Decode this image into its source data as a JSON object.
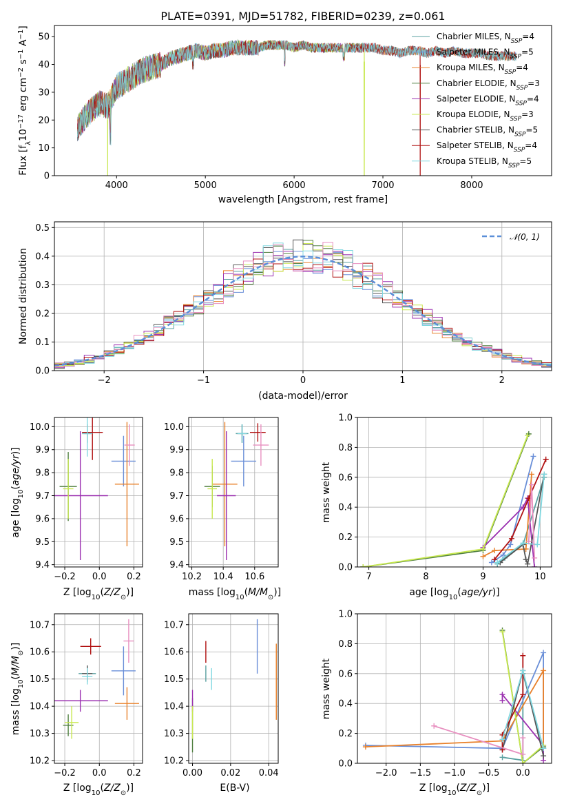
{
  "chart_data": [
    {
      "id": "spectrum",
      "type": "line",
      "title": "PLATE=0391, MJD=51782, FIBERID=0239, z=0.061",
      "xlabel": "wavelength [Angstrom, rest frame]",
      "ylabel": "Flux [f_λ 10^-17 erg cm^-2 s^-1 A^-1]",
      "xlim": [
        3300,
        8900
      ],
      "ylim": [
        0,
        54
      ],
      "xticks": [
        4000,
        5000,
        6000,
        7000,
        8000
      ],
      "yticks": [
        0,
        10,
        20,
        30,
        40,
        50
      ],
      "envelope_x": [
        3560,
        3620,
        3700,
        3800,
        3900,
        4000,
        4100,
        4200,
        4300,
        4400,
        4500,
        4600,
        4700,
        4800,
        4900,
        5000,
        5100,
        5200,
        5300,
        5400,
        5500,
        5600,
        5700,
        5800,
        5900,
        6000,
        6100,
        6200,
        6300,
        6400,
        6500,
        6600,
        6700,
        6800,
        6900,
        7000,
        7100,
        7200,
        7300,
        7400,
        7500,
        7600,
        7700,
        7800,
        7900,
        8000,
        8100,
        8200,
        8300,
        8400,
        8500
      ],
      "envelope_y": [
        17,
        20,
        23,
        26,
        25,
        32,
        34,
        36,
        38,
        39,
        40,
        42,
        43,
        44,
        45,
        44,
        45,
        45,
        46,
        46,
        46,
        46,
        47,
        47,
        47,
        46,
        47,
        46,
        46,
        46,
        46,
        46,
        46,
        46,
        46,
        45,
        45,
        44,
        45,
        45,
        44,
        45,
        44,
        45,
        44,
        44,
        44,
        43,
        43,
        43,
        43
      ],
      "spike_down": [
        {
          "x": 3900,
          "series": "Kroupa ELODIE"
        },
        {
          "x": 6790,
          "series": "Kroupa ELODIE"
        },
        {
          "x": 7420,
          "series": "Salpeter STELIB"
        }
      ],
      "legend": [
        {
          "name": "Chabrier MILES, N",
          "sub": "SSP",
          "suffix": "=4"
        },
        {
          "name": "Salpeter MILES, N",
          "sub": "SSP",
          "suffix": "=5"
        },
        {
          "name": "Kroupa MILES, N",
          "sub": "SSP",
          "suffix": "=4"
        },
        {
          "name": "Chabrier ELODIE, N",
          "sub": "SSP",
          "suffix": "=3"
        },
        {
          "name": "Salpeter ELODIE, N",
          "sub": "SSP",
          "suffix": "=4"
        },
        {
          "name": "Kroupa ELODIE, N",
          "sub": "SSP",
          "suffix": "=3"
        },
        {
          "name": "Chabrier STELIB, N",
          "sub": "SSP",
          "suffix": "=5"
        },
        {
          "name": "Salpeter STELIB, N",
          "sub": "SSP",
          "suffix": "=4"
        },
        {
          "name": "Kroupa STELIB, N",
          "sub": "SSP",
          "suffix": "=5"
        }
      ],
      "legend_placement": "top-right"
    },
    {
      "id": "residuals",
      "type": "histogram",
      "xlabel": "(data-model)/error",
      "ylabel": "Normed distribution",
      "xlim": [
        -2.5,
        2.5
      ],
      "ylim": [
        0,
        0.52
      ],
      "xticks": [
        -2,
        -1,
        0,
        1,
        2
      ],
      "yticks": [
        0.0,
        0.1,
        0.2,
        0.3,
        0.4,
        0.5
      ],
      "grid": true,
      "bin_width": 0.1,
      "reference_curve": {
        "label": "𝒩(0, 1)",
        "mean": 0,
        "sigma": 1
      },
      "legend_placement": "top-right"
    },
    {
      "id": "age_vs_Z",
      "type": "errorbar",
      "xlabel": "Z [log₁₀(Z/Z☉)]",
      "ylabel": "age  [log₁₀(age/yr)]",
      "xlim": [
        -0.26,
        0.25
      ],
      "ylim": [
        9.39,
        10.04
      ],
      "xticks": [
        -0.2,
        0.0,
        0.2
      ],
      "yticks": [
        9.4,
        9.5,
        9.6,
        9.7,
        9.8,
        9.9,
        10.0
      ],
      "points": [
        {
          "series": "Chabrier MILES",
          "x": -0.07,
          "xerr": 0.02,
          "y": 9.97,
          "yerr": 0.04
        },
        {
          "series": "Salpeter MILES",
          "x": 0.14,
          "xerr": 0.07,
          "y": 9.85,
          "yerr": 0.11
        },
        {
          "series": "Kroupa MILES",
          "x": 0.16,
          "xerr": 0.07,
          "y": 9.75,
          "yerr": 0.27
        },
        {
          "series": "Chabrier ELODIE",
          "x": -0.18,
          "xerr": 0.05,
          "y": 9.74,
          "yerr": 0.15
        },
        {
          "series": "Salpeter ELODIE",
          "x": -0.11,
          "xerr": 0.16,
          "y": 9.7,
          "yerr": 0.28
        },
        {
          "series": "Kroupa ELODIE",
          "x": -0.18,
          "xerr": 0.03,
          "y": 9.73,
          "yerr": 0.13
        },
        {
          "series": "Chabrier STELIB",
          "x": -0.07,
          "xerr": 0.03,
          "y": 9.97,
          "yerr": 0.04
        },
        {
          "series": "Salpeter STELIB",
          "x": -0.04,
          "xerr": 0.06,
          "y": 9.975,
          "yerr": 0.12
        },
        {
          "series": "Kroupa STELIB",
          "x": -0.07,
          "xerr": 0.03,
          "y": 9.97,
          "yerr": 0.1
        },
        {
          "series": "Salpeter MILES",
          "x": 0.175,
          "xerr": 0.03,
          "y": 9.92,
          "yerr": 0.09
        }
      ],
      "grid": true
    },
    {
      "id": "age_vs_mass",
      "type": "errorbar",
      "xlabel": "mass [log₁₀(M/M☉)]",
      "ylabel": "",
      "xlim": [
        10.18,
        10.75
      ],
      "ylim": [
        9.39,
        10.04
      ],
      "xticks": [
        10.2,
        10.4,
        10.6
      ],
      "yticks": [
        9.4,
        9.5,
        9.6,
        9.7,
        9.8,
        9.9,
        10.0
      ],
      "points": [
        {
          "series": "Chabrier MILES",
          "x": 10.52,
          "xerr": 0.04,
          "y": 9.97,
          "yerr": 0.04
        },
        {
          "series": "Salpeter MILES",
          "x": 10.53,
          "xerr": 0.08,
          "y": 9.85,
          "yerr": 0.11
        },
        {
          "series": "Kroupa MILES",
          "x": 10.41,
          "xerr": 0.08,
          "y": 9.75,
          "yerr": 0.27
        },
        {
          "series": "Chabrier ELODIE",
          "x": 10.33,
          "xerr": 0.05,
          "y": 9.74,
          "yerr": 0.09
        },
        {
          "series": "Salpeter ELODIE",
          "x": 10.42,
          "xerr": 0.06,
          "y": 9.7,
          "yerr": 0.28
        },
        {
          "series": "Kroupa ELODIE",
          "x": 10.33,
          "xerr": 0.03,
          "y": 9.73,
          "yerr": 0.13
        },
        {
          "series": "Chabrier STELIB",
          "x": 10.52,
          "xerr": 0.03,
          "y": 9.97,
          "yerr": 0.04
        },
        {
          "series": "Salpeter STELIB",
          "x": 10.62,
          "xerr": 0.05,
          "y": 9.975,
          "yerr": 0.04
        },
        {
          "series": "Kroupa STELIB",
          "x": 10.52,
          "xerr": 0.03,
          "y": 9.97,
          "yerr": 0.04
        },
        {
          "series": "Salpeter MILES",
          "x": 10.64,
          "xerr": 0.05,
          "y": 9.92,
          "yerr": 0.09
        }
      ],
      "grid": true
    },
    {
      "id": "weight_vs_age",
      "type": "line",
      "xlabel": "age  [log₁₀(age/yr)]",
      "ylabel": "mass weight",
      "xlim": [
        6.8,
        10.2
      ],
      "ylim": [
        0,
        1
      ],
      "xticks": [
        7,
        8,
        9,
        10
      ],
      "yticks": [
        0.0,
        0.2,
        0.4,
        0.6,
        0.8,
        1.0
      ],
      "series": [
        {
          "name": "Chabrier MILES",
          "x": [
            9.25,
            9.38,
            9.7,
            10.07
          ],
          "y": [
            0.02,
            0.06,
            0.15,
            0.6
          ]
        },
        {
          "name": "Salpeter MILES",
          "x": [
            9.15,
            9.35,
            9.48,
            9.88
          ],
          "y": [
            0.03,
            0.08,
            0.15,
            0.74
          ]
        },
        {
          "name": "Kroupa MILES",
          "x": [
            9.0,
            9.2,
            9.75,
            9.85
          ],
          "y": [
            0.07,
            0.11,
            0.12,
            0.62
          ]
        },
        {
          "name": "Chabrier ELODIE",
          "x": [
            6.9,
            9.0,
            9.8
          ],
          "y": [
            0.0,
            0.11,
            0.89
          ]
        },
        {
          "name": "Salpeter ELODIE",
          "x": [
            9.0,
            9.7,
            9.78,
            9.9
          ],
          "y": [
            0.13,
            0.4,
            0.46,
            0.0
          ]
        },
        {
          "name": "Kroupa ELODIE",
          "x": [
            6.9,
            9.0,
            9.78
          ],
          "y": [
            0.0,
            0.12,
            0.88
          ]
        },
        {
          "name": "Chabrier STELIB",
          "x": [
            9.3,
            9.7,
            9.75,
            9.78,
            10.07
          ],
          "y": [
            0.03,
            0.15,
            0.05,
            0.02,
            0.62
          ]
        },
        {
          "name": "Salpeter STELIB",
          "x": [
            9.2,
            9.5,
            9.8,
            10.1
          ],
          "y": [
            0.05,
            0.19,
            0.46,
            0.72
          ]
        },
        {
          "name": "Kroupa STELIB",
          "x": [
            9.25,
            9.7,
            9.95,
            10.07
          ],
          "y": [
            0.03,
            0.16,
            0.15,
            0.62
          ]
        },
        {
          "name": "Salpeter MILES",
          "x": [
            9.8,
            9.85,
            9.9
          ],
          "y": [
            0.17,
            0.55,
            0.06
          ]
        }
      ],
      "grid": true
    },
    {
      "id": "mass_vs_Z",
      "type": "errorbar",
      "xlabel": "Z [log₁₀(Z/Z☉)]",
      "ylabel": "mass [log₁₀(M/M☉)]",
      "xlim": [
        -0.26,
        0.25
      ],
      "ylim": [
        10.19,
        10.74
      ],
      "xticks": [
        -0.2,
        0.0,
        0.2
      ],
      "yticks": [
        10.2,
        10.3,
        10.4,
        10.5,
        10.6,
        10.7
      ],
      "points": [
        {
          "series": "Chabrier MILES",
          "x": -0.07,
          "xerr": 0.05,
          "y": 10.52,
          "yerr": 0.03
        },
        {
          "series": "Salpeter MILES",
          "x": 0.14,
          "xerr": 0.07,
          "y": 10.53,
          "yerr": 0.09
        },
        {
          "series": "Kroupa MILES",
          "x": 0.16,
          "xerr": 0.07,
          "y": 10.41,
          "yerr": 0.06
        },
        {
          "series": "Chabrier ELODIE",
          "x": -0.18,
          "xerr": 0.03,
          "y": 10.33,
          "yerr": 0.04
        },
        {
          "series": "Salpeter ELODIE",
          "x": -0.11,
          "xerr": 0.16,
          "y": 10.42,
          "yerr": 0.04
        },
        {
          "series": "Kroupa ELODIE",
          "x": -0.16,
          "xerr": 0.04,
          "y": 10.34,
          "yerr": 0.06
        },
        {
          "series": "Chabrier STELIB",
          "x": -0.07,
          "xerr": 0.03,
          "y": 10.52,
          "yerr": 0.03
        },
        {
          "series": "Salpeter STELIB",
          "x": -0.05,
          "xerr": 0.06,
          "y": 10.62,
          "yerr": 0.03
        },
        {
          "series": "Kroupa STELIB",
          "x": -0.07,
          "xerr": 0.03,
          "y": 10.51,
          "yerr": 0.03
        },
        {
          "series": "Salpeter MILES",
          "x": 0.17,
          "xerr": 0.03,
          "y": 10.64,
          "yerr": 0.08
        }
      ],
      "grid": true
    },
    {
      "id": "mass_vs_ebv",
      "type": "errorbar",
      "xlabel": "E(B-V)",
      "ylabel": "",
      "xlim": [
        -0.002,
        0.045
      ],
      "ylim": [
        10.19,
        10.74
      ],
      "xticks": [
        0.0,
        0.02,
        0.04
      ],
      "yticks": [
        10.2,
        10.3,
        10.4,
        10.5,
        10.6,
        10.7
      ],
      "points": [
        {
          "series": "Chabrier MILES",
          "x": 0.007,
          "y": 10.52,
          "yerr": 0.03
        },
        {
          "series": "Kroupa MILES",
          "x": 0.044,
          "y": 10.49,
          "yerr": 0.14
        },
        {
          "series": "Chabrier ELODIE",
          "x": 0.0,
          "y": 10.33,
          "yerr": 0.1
        },
        {
          "series": "Salpeter ELODIE",
          "x": 0.0,
          "y": 10.42,
          "yerr": 0.04
        },
        {
          "series": "Kroupa ELODIE",
          "x": 0.0,
          "y": 10.34,
          "yerr": 0.06
        },
        {
          "series": "Salpeter STELIB",
          "x": 0.007,
          "y": 10.6,
          "yerr": 0.04
        },
        {
          "series": "Kroupa STELIB",
          "x": 0.01,
          "y": 10.5,
          "yerr": 0.04
        },
        {
          "series": "Salpeter MILES",
          "x": 0.034,
          "y": 10.62,
          "yerr": 0.1
        }
      ],
      "grid": true
    },
    {
      "id": "weight_vs_Z",
      "type": "line",
      "xlabel": "Z [log₁₀(Z/Z☉)]",
      "ylabel": "mass weight",
      "xlim": [
        -2.42,
        0.42
      ],
      "ylim": [
        0,
        1
      ],
      "xticks": [
        -2.0,
        -1.5,
        -1.0,
        -0.5,
        0.0
      ],
      "yticks": [
        0.0,
        0.2,
        0.4,
        0.6,
        0.8,
        1.0
      ],
      "series": [
        {
          "name": "Chabrier MILES",
          "x": [
            -0.3,
            0.0,
            0.0,
            0.3
          ],
          "y": [
            0.04,
            0.02,
            0.6,
            0.1
          ]
        },
        {
          "name": "Salpeter MILES",
          "x": [
            -2.3,
            -0.3,
            0.3,
            0.3
          ],
          "y": [
            0.12,
            0.1,
            0.74,
            0.1
          ]
        },
        {
          "name": "Kroupa MILES",
          "x": [
            -2.3,
            -0.3,
            0.3,
            0.3
          ],
          "y": [
            0.11,
            0.15,
            0.62,
            0.1
          ]
        },
        {
          "name": "Chabrier ELODIE",
          "x": [
            -0.3,
            0.0,
            0.3
          ],
          "y": [
            0.89,
            0.0,
            0.11
          ]
        },
        {
          "name": "Salpeter ELODIE",
          "x": [
            -0.3,
            -0.3,
            0.3,
            0.3
          ],
          "y": [
            0.42,
            0.46,
            0.12,
            0.02
          ]
        },
        {
          "name": "Kroupa ELODIE",
          "x": [
            -0.3,
            0.0,
            0.3
          ],
          "y": [
            0.88,
            0.0,
            0.12
          ]
        },
        {
          "name": "Chabrier STELIB",
          "x": [
            -0.3,
            0.0,
            0.3
          ],
          "y": [
            0.09,
            0.62,
            0.05
          ]
        },
        {
          "name": "Salpeter STELIB",
          "x": [
            -0.3,
            -0.3,
            0.0,
            0.0
          ],
          "y": [
            0.09,
            0.19,
            0.46,
            0.72
          ]
        },
        {
          "name": "Kroupa STELIB",
          "x": [
            -0.3,
            0.0,
            0.3
          ],
          "y": [
            0.16,
            0.62,
            0.1
          ]
        },
        {
          "name": "Salpeter MILES",
          "x": [
            -1.3,
            0.0,
            0.0
          ],
          "y": [
            0.25,
            0.06,
            0.17
          ]
        }
      ],
      "grid": true
    }
  ],
  "colors": {
    "Chabrier MILES": "#5aa0a0",
    "Salpeter MILES": "#6a8fd8",
    "Kroupa MILES": "#e8802a",
    "Chabrier ELODIE": "#4f7f3f",
    "Salpeter ELODIE": "#9b30b0",
    "Kroupa ELODIE": "#c8e850",
    "Chabrier STELIB": "#555555",
    "Salpeter STELIB": "#b01010",
    "Kroupa STELIB": "#80d8e0",
    "Salpeter MILES alt": "#e890c0",
    "reference_curve": "#5b8fd8"
  }
}
